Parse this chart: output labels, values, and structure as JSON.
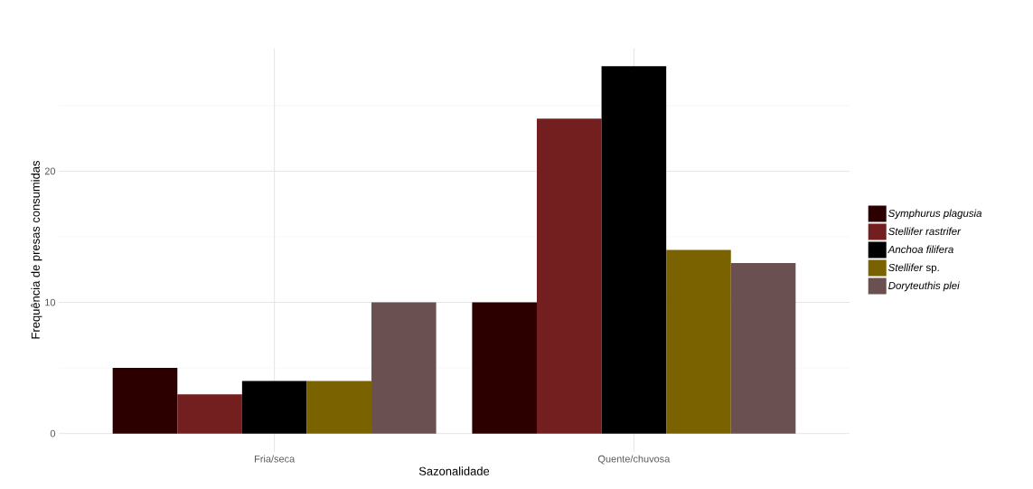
{
  "chart_data": {
    "type": "bar",
    "xlabel": "Sazonalidade",
    "ylabel": "Frequência de presas consumidas",
    "categories": [
      "Fria/seca",
      "Quente/chuvosa"
    ],
    "series": [
      {
        "name": "*Symphurus plagusia*",
        "color": "#2d0000",
        "values": [
          5,
          10
        ]
      },
      {
        "name": "*Stellifer rastrifer*",
        "color": "#731f1f",
        "values": [
          3,
          24
        ]
      },
      {
        "name": "*Anchoa filifera*",
        "color": "#000000",
        "values": [
          4,
          28
        ]
      },
      {
        "name": "*Stellifer* sp.",
        "color": "#7a6200",
        "values": [
          4,
          14
        ]
      },
      {
        "name": "*Doryteuthis plei*",
        "color": "#6a5050",
        "values": [
          10,
          13
        ]
      }
    ],
    "ylim": [
      -1.4,
      29.4
    ],
    "yticks": [
      0,
      10,
      20
    ],
    "grid": true,
    "legend": "right"
  }
}
